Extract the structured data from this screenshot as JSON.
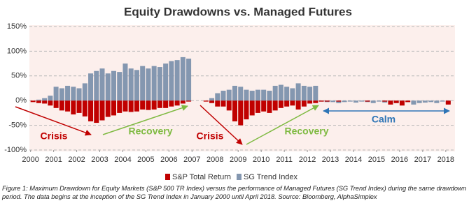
{
  "chart_data": {
    "type": "bar",
    "title": "Equity Drawdowns vs. Managed Futures",
    "x": [
      2000,
      2000.25,
      2000.5,
      2000.75,
      2001,
      2001.25,
      2001.5,
      2001.75,
      2002,
      2002.25,
      2002.5,
      2002.75,
      2003,
      2003.25,
      2003.5,
      2003.75,
      2004,
      2004.25,
      2004.5,
      2004.75,
      2005,
      2005.25,
      2005.5,
      2005.75,
      2006,
      2006.25,
      2006.5,
      2006.75,
      2007,
      2007.25,
      2007.5,
      2007.75,
      2008,
      2008.25,
      2008.5,
      2008.75,
      2009,
      2009.25,
      2009.5,
      2009.75,
      2010,
      2010.25,
      2010.5,
      2010.75,
      2011,
      2011.25,
      2011.5,
      2011.75,
      2012,
      2012.25,
      2012.5,
      2012.75,
      2013,
      2013.25,
      2013.5,
      2013.75,
      2014,
      2014.25,
      2014.5,
      2014.75,
      2015,
      2015.25,
      2015.5,
      2015.75,
      2016,
      2016.25,
      2016.5,
      2016.75,
      2017,
      2017.25,
      2017.5,
      2017.75,
      2018
    ],
    "series": [
      {
        "name": "SG Trend Index",
        "color": "#8497b0",
        "values": [
          0,
          2,
          5,
          10,
          28,
          25,
          30,
          28,
          25,
          35,
          55,
          60,
          65,
          55,
          60,
          58,
          75,
          65,
          62,
          70,
          65,
          70,
          68,
          75,
          80,
          82,
          88,
          85,
          0,
          0,
          0,
          5,
          15,
          20,
          22,
          30,
          28,
          22,
          20,
          22,
          22,
          20,
          30,
          32,
          28,
          25,
          35,
          30,
          28,
          30,
          -2,
          -3,
          -3,
          -5,
          -3,
          -2,
          -4,
          -2,
          -3,
          -5,
          -2,
          -4,
          -3,
          -5,
          -2,
          -3,
          -8,
          -5,
          -4,
          -3,
          -5,
          -2,
          -6
        ]
      },
      {
        "name": "S&P Total Return",
        "color": "#c00000",
        "values": [
          -3,
          -5,
          -6,
          -10,
          -15,
          -20,
          -22,
          -28,
          -25,
          -32,
          -42,
          -45,
          -40,
          -33,
          -30,
          -25,
          -22,
          -23,
          -22,
          -18,
          -19,
          -18,
          -15,
          -15,
          -12,
          -10,
          -6,
          -2,
          0,
          0,
          -2,
          -5,
          -12,
          -12,
          -20,
          -42,
          -50,
          -38,
          -30,
          -25,
          -22,
          -25,
          -20,
          -15,
          -12,
          -10,
          -18,
          -12,
          -6,
          -5,
          -2,
          -2,
          0,
          -2,
          0,
          0,
          0,
          0,
          -2,
          0,
          0,
          -2,
          -8,
          -5,
          -10,
          -3,
          0,
          0,
          0,
          0,
          0,
          0,
          -8
        ]
      }
    ],
    "xlim": [
      1999.95,
      2018.4
    ],
    "xticks": [
      2000,
      2001,
      2002,
      2003,
      2004,
      2005,
      2006,
      2007,
      2008,
      2009,
      2010,
      2011,
      2012,
      2013,
      2014,
      2015,
      2016,
      2017,
      2018
    ],
    "ylim": [
      -100,
      150
    ],
    "yticks": [
      {
        "value": -100,
        "label": "-100%"
      },
      {
        "value": -50,
        "label": "-50%"
      },
      {
        "value": 0,
        "label": "0%"
      },
      {
        "value": 50,
        "label": "50%"
      },
      {
        "value": 100,
        "label": "100%"
      },
      {
        "value": 150,
        "label": "150%"
      }
    ],
    "grid": true,
    "annotations": [
      {
        "text": "Crisis",
        "color": "#c00000"
      },
      {
        "text": "Recovery",
        "color": "#7fba42"
      },
      {
        "text": "Crisis",
        "color": "#c00000"
      },
      {
        "text": "Recovery",
        "color": "#7fba42"
      },
      {
        "text": "Calm",
        "color": "#2e75b6"
      }
    ],
    "caption": "Figure 1: Maximum Drawdown for Equity Markets (S&P 500 TR Index) versus the performance of Managed Futures (SG Trend Index) during the same drawdown period. The data begins at the inception of the SG Trend Index in January 2000 until April 2018. Source: Bloomberg, AlphaSimplex"
  }
}
